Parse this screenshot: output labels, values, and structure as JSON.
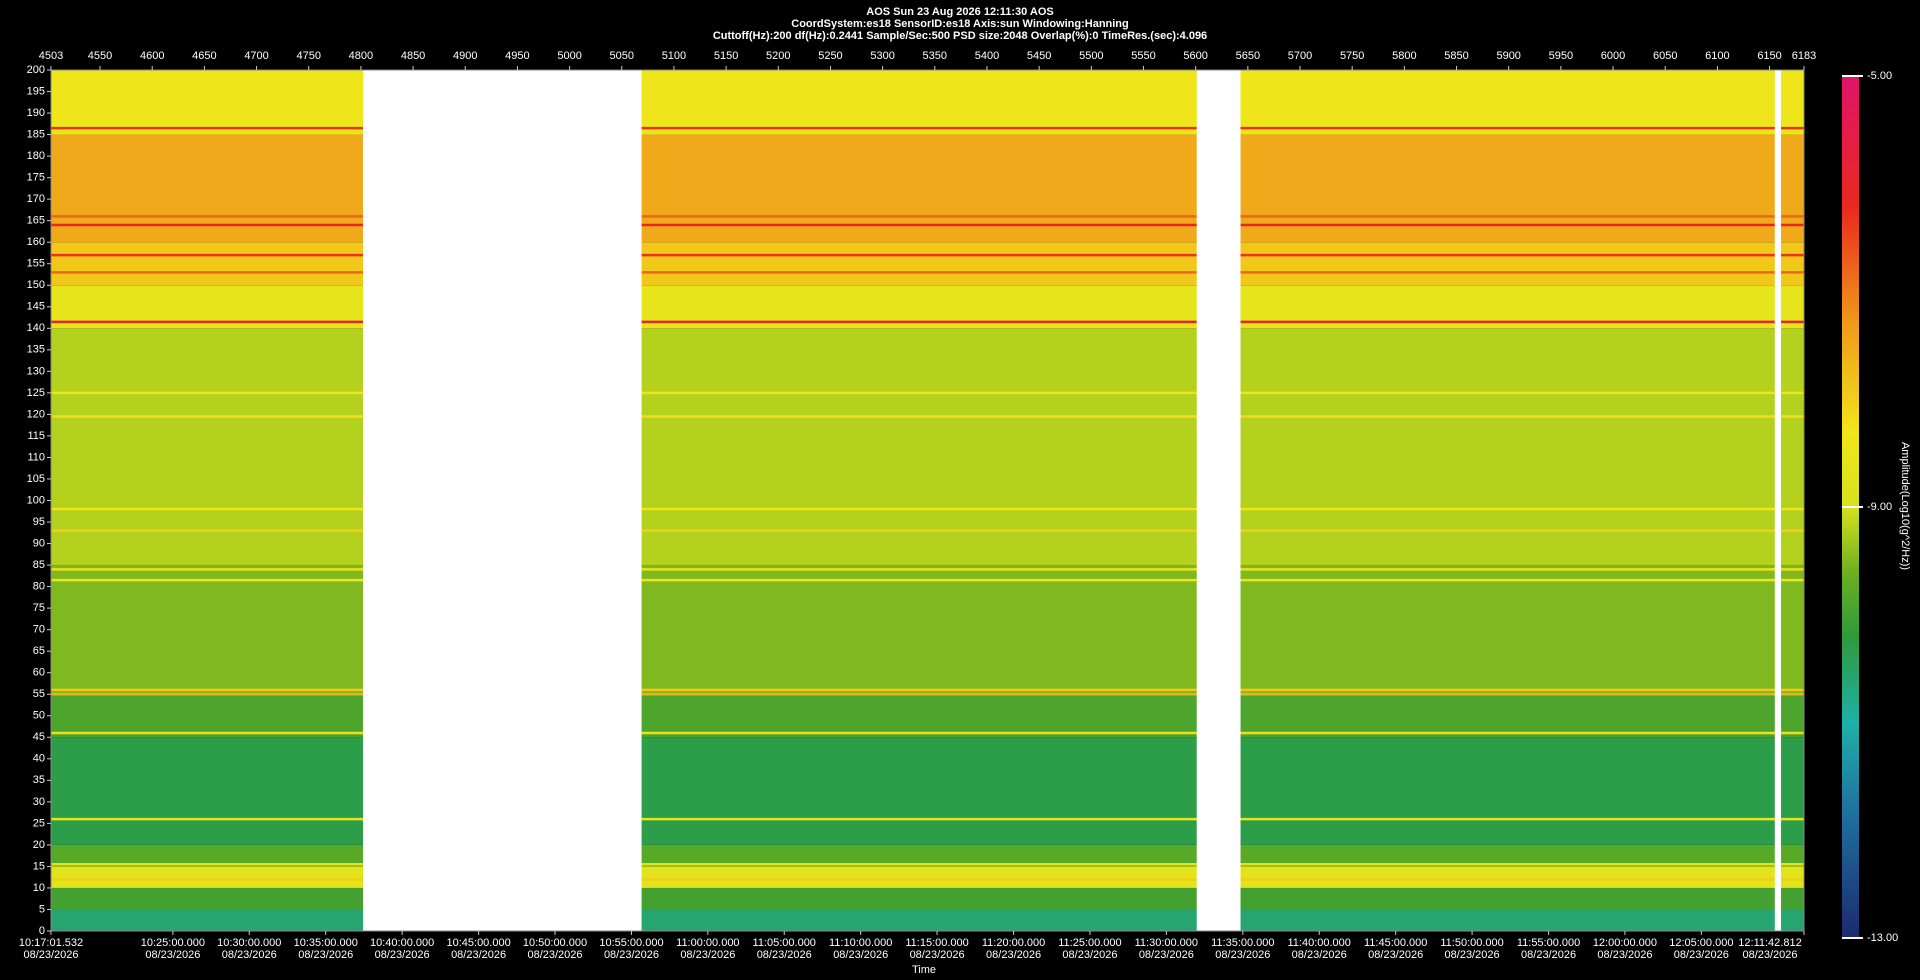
{
  "chart_data": {
    "type": "spectrogram",
    "title": "AOS  Sun 23 Aug 2026 12:11:30  AOS",
    "subtitle": "CoordSystem:es18   SensorID:es18    Axis:sun    Windowing:Hanning",
    "parameters": "Cuttoff(Hz):200      df(Hz):0.2441      Sample/Sec:500      PSD size:2048       Overlap(%):0       TimeRes.(sec):4.096",
    "xlabel": "Time",
    "colorbar_label": "Amplitude(Log10(g^2/Hz))",
    "date": "08/23/2026",
    "xlim": [
      4503,
      6183
    ],
    "xticks": [
      4503,
      4550,
      4600,
      4650,
      4700,
      4750,
      4800,
      4850,
      4900,
      4950,
      5000,
      5050,
      5100,
      5150,
      5200,
      5250,
      5300,
      5350,
      5400,
      5450,
      5500,
      5550,
      5600,
      5650,
      5700,
      5750,
      5800,
      5850,
      5900,
      5950,
      6000,
      6050,
      6100,
      6150,
      6183
    ],
    "time_ticks": [
      {
        "value": 4503,
        "label": "10:17:01.532"
      },
      {
        "value": 4619.8,
        "label": "10:25:00.000"
      },
      {
        "value": 4693.0,
        "label": "10:30:00.000"
      },
      {
        "value": 4766.3,
        "label": "10:35:00.000"
      },
      {
        "value": 4839.5,
        "label": "10:40:00.000"
      },
      {
        "value": 4912.8,
        "label": "10:45:00.000"
      },
      {
        "value": 4986.0,
        "label": "10:50:00.000"
      },
      {
        "value": 5059.3,
        "label": "10:55:00.000"
      },
      {
        "value": 5132.5,
        "label": "11:00:00.000"
      },
      {
        "value": 5205.7,
        "label": "11:05:00.000"
      },
      {
        "value": 5279.0,
        "label": "11:10:00.000"
      },
      {
        "value": 5352.2,
        "label": "11:15:00.000"
      },
      {
        "value": 5425.5,
        "label": "11:20:00.000"
      },
      {
        "value": 5498.7,
        "label": "11:25:00.000"
      },
      {
        "value": 5571.9,
        "label": "11:30:00.000"
      },
      {
        "value": 5645.2,
        "label": "11:35:00.000"
      },
      {
        "value": 5718.4,
        "label": "11:40:00.000"
      },
      {
        "value": 5791.7,
        "label": "11:45:00.000"
      },
      {
        "value": 5864.9,
        "label": "11:50:00.000"
      },
      {
        "value": 5938.2,
        "label": "11:55:00.000"
      },
      {
        "value": 6011.4,
        "label": "12:00:00.000"
      },
      {
        "value": 6084.6,
        "label": "12:05:00.000"
      },
      {
        "value": 6183,
        "label": "12:11:42.812"
      }
    ],
    "ylim": [
      0,
      200
    ],
    "yticks": [
      0,
      5,
      10,
      15,
      20,
      25,
      30,
      35,
      40,
      45,
      50,
      55,
      60,
      65,
      70,
      75,
      80,
      85,
      90,
      95,
      100,
      105,
      110,
      115,
      120,
      125,
      130,
      135,
      140,
      145,
      150,
      155,
      160,
      165,
      170,
      175,
      180,
      185,
      190,
      195,
      200
    ],
    "bin_edges": [
      0,
      5,
      10,
      15,
      20,
      45,
      55,
      85,
      140,
      150,
      160,
      185,
      200
    ],
    "levels": [
      -10.6,
      -10.0,
      -8.7,
      -9.8,
      -10.3,
      -9.9,
      -9.5,
      -9.2,
      -8.6,
      -7.9,
      -7.5,
      -8.4
    ],
    "peaks": {
      "frequencies": [
        186.5,
        166,
        164,
        157,
        153,
        141.5,
        125,
        119.5,
        98,
        93,
        84,
        81.5,
        56,
        55,
        46,
        26,
        15.5,
        12
      ],
      "values": [
        -6.3,
        -6.8,
        -6.2,
        -6.3,
        -6.8,
        -6.0,
        -8.4,
        -8.2,
        -8.4,
        -8.0,
        -8.5,
        -8.4,
        -7.9,
        -7.6,
        -8.2,
        -8.6,
        -8.7,
        -8.0
      ]
    },
    "gaps": [
      [
        4802,
        5069
      ],
      [
        5601,
        5643
      ],
      [
        6155,
        6161
      ]
    ],
    "gap_color": "#ffffff",
    "clim": [
      -13,
      -5
    ],
    "cticks": [
      {
        "value": -13,
        "label": "-13.00"
      },
      {
        "value": -9,
        "label": "-9.00"
      },
      {
        "value": -5,
        "label": "-5.00"
      }
    ],
    "colorscale": [
      [
        -13,
        "#1c2a6e"
      ],
      [
        -11.8,
        "#1f73a0"
      ],
      [
        -11,
        "#1fb0a8"
      ],
      [
        -10.2,
        "#2e9a3a"
      ],
      [
        -9.6,
        "#6fb020"
      ],
      [
        -9,
        "#d6e21c"
      ],
      [
        -8.3,
        "#f2e51a"
      ],
      [
        -7.3,
        "#f09a1a"
      ],
      [
        -6.2,
        "#e8281e"
      ],
      [
        -5,
        "#e0146a"
      ]
    ]
  }
}
